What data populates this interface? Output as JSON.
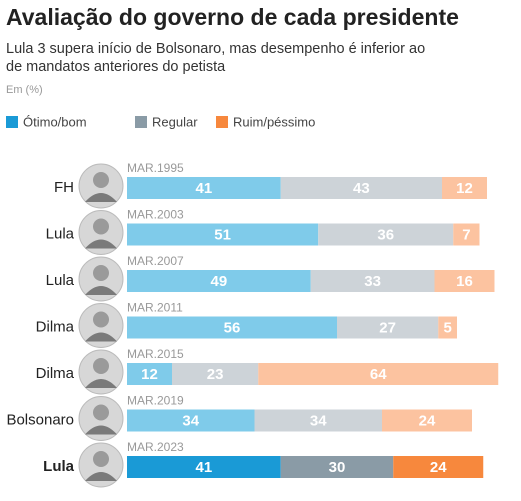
{
  "chart_data": {
    "type": "stacked-bar",
    "title": "Avaliação do governo de cada presidente",
    "subtitle": [
      "Lula 3 supera início de Bolsonaro, mas desempenho é inferior ao",
      "de mandatos anteriores do petista"
    ],
    "unit_note": "Em (%)",
    "categories": [
      "FH",
      "Lula",
      "Lula",
      "Dilma",
      "Dilma",
      "Bolsonaro",
      "Lula"
    ],
    "dates": [
      "MAR.1995",
      "MAR.2003",
      "MAR.2007",
      "MAR.2011",
      "MAR.2015",
      "MAR.2019",
      "MAR.2023"
    ],
    "highlight_index": 6,
    "series": [
      {
        "name": "Ótimo/bom",
        "color": "#1a9ad6",
        "light_color": "#7fcbea",
        "values": [
          41,
          51,
          49,
          56,
          12,
          34,
          41
        ]
      },
      {
        "name": "Regular",
        "color": "#8a9ba6",
        "light_color": "#cdd3d8",
        "values": [
          43,
          36,
          33,
          27,
          23,
          34,
          30
        ]
      },
      {
        "name": "Ruim/péssimo",
        "color": "#f7883d",
        "light_color": "#fcc3a0",
        "values": [
          12,
          7,
          16,
          5,
          64,
          24,
          24
        ]
      }
    ]
  }
}
